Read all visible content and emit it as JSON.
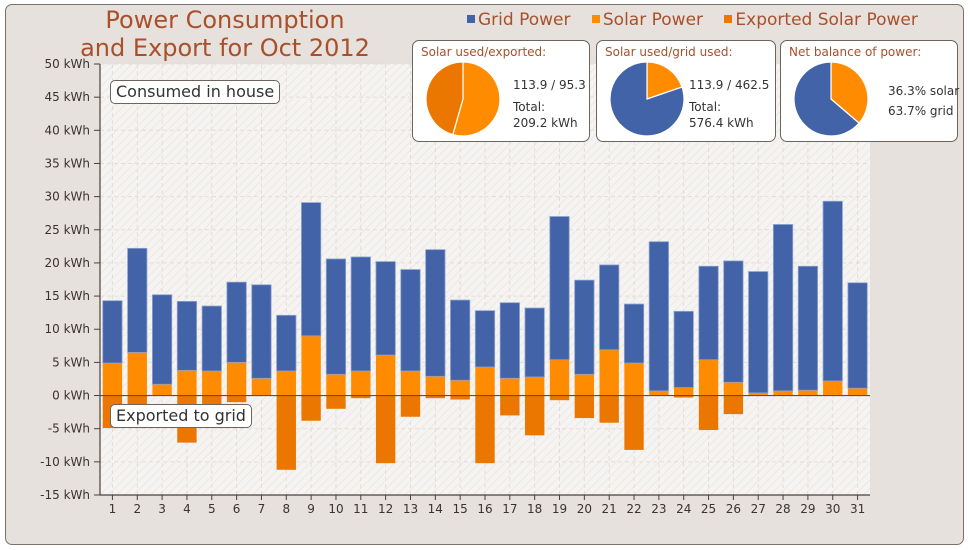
{
  "title_line1": "Power Consumption",
  "title_line2": "and Export for Oct 2012",
  "legend": [
    {
      "label": "Grid Power",
      "color": "#4263a8"
    },
    {
      "label": "Solar Power",
      "color": "#ff8c00"
    },
    {
      "label": "Exported Solar Power",
      "color": "#ec7700"
    }
  ],
  "pies": [
    {
      "title": "Solar used/exported:",
      "line1": "113.9 / 95.3",
      "line2": "Total:",
      "line3": "209.2 kWh",
      "slices": [
        {
          "label": "Solar used",
          "value": 113.9,
          "color": "#ff8c00"
        },
        {
          "label": "Exported",
          "value": 95.3,
          "color": "#ec7700"
        }
      ]
    },
    {
      "title": "Solar used/grid used:",
      "line1": "113.9 / 462.5",
      "line2": "Total:",
      "line3": "576.4 kWh",
      "slices": [
        {
          "label": "Solar used",
          "value": 113.9,
          "color": "#ff8c00"
        },
        {
          "label": "Grid used",
          "value": 462.5,
          "color": "#4263a8"
        }
      ]
    },
    {
      "title": "Net balance of power:",
      "line1": "36.3% solar",
      "line2": "63.7% grid",
      "line3": "",
      "slices": [
        {
          "label": "Solar",
          "value": 36.3,
          "color": "#ff8c00"
        },
        {
          "label": "Grid",
          "value": 63.7,
          "color": "#4263a8"
        }
      ]
    }
  ],
  "annotations": {
    "top": "Consumed in house",
    "bottom": "Exported to grid"
  },
  "chart_data": {
    "type": "bar",
    "stacked": true,
    "title": "Power Consumption and Export for Oct 2012",
    "xlabel": "",
    "ylabel": "",
    "ylim": [
      -15,
      50
    ],
    "yticks": [
      50,
      45,
      40,
      35,
      30,
      25,
      20,
      15,
      10,
      5,
      0,
      -5,
      -10,
      -15
    ],
    "ytick_suffix": " kWh",
    "grid": true,
    "legend_position": "top-right",
    "categories": [
      "1",
      "2",
      "3",
      "4",
      "5",
      "6",
      "7",
      "8",
      "9",
      "10",
      "11",
      "12",
      "13",
      "14",
      "15",
      "16",
      "17",
      "18",
      "19",
      "20",
      "21",
      "22",
      "23",
      "24",
      "25",
      "26",
      "27",
      "28",
      "29",
      "30",
      "31"
    ],
    "series": [
      {
        "name": "Solar Power",
        "color": "#ff8c00",
        "values": [
          4.9,
          6.5,
          1.7,
          3.8,
          3.7,
          5.0,
          2.6,
          3.7,
          9.0,
          3.2,
          3.7,
          6.1,
          3.7,
          2.9,
          2.3,
          4.3,
          2.6,
          2.8,
          5.4,
          3.2,
          6.9,
          4.9,
          0.7,
          1.2,
          5.4,
          2.0,
          0.4,
          0.7,
          0.8,
          2.2,
          1.1
        ]
      },
      {
        "name": "Grid Power",
        "color": "#4263a8",
        "values": [
          9.4,
          15.7,
          13.5,
          10.4,
          9.8,
          12.1,
          14.1,
          8.4,
          20.1,
          17.4,
          17.2,
          14.1,
          15.3,
          19.1,
          12.1,
          8.5,
          11.4,
          10.4,
          21.6,
          14.2,
          12.8,
          8.9,
          22.5,
          11.5,
          14.1,
          18.3,
          18.3,
          25.1,
          18.7,
          27.1,
          15.9
        ]
      },
      {
        "name": "Exported Solar Power",
        "color": "#ec7700",
        "values": [
          -4.9,
          -1.5,
          0,
          -7.1,
          -1.5,
          -1.0,
          0,
          -11.2,
          -3.8,
          -2.0,
          -0.4,
          -10.2,
          -3.2,
          -0.4,
          -0.6,
          -10.2,
          -3.0,
          -6.0,
          -0.7,
          -3.4,
          -4.1,
          -8.2,
          0,
          -0.3,
          -5.2,
          -2.8,
          0,
          0,
          0,
          0,
          0
        ]
      }
    ]
  }
}
